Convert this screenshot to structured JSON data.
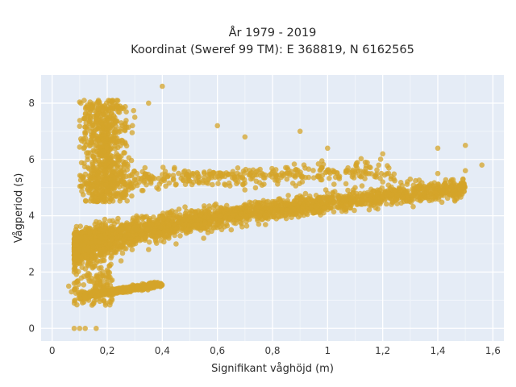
{
  "chart_data": {
    "type": "scatter",
    "title": [
      "År 1979 - 2019",
      "Koordinat (Sweref 99 TM): E 368819, N 6162565"
    ],
    "xlabel": "Signifikant våghöjd (m)",
    "ylabel": "Vågperiod (s)",
    "xlim": [
      -0.04,
      1.64
    ],
    "ylim": [
      -0.45,
      9.0
    ],
    "x_ticks": [
      0,
      0.2,
      0.4,
      0.6,
      0.8,
      1.0,
      1.2,
      1.4,
      1.6
    ],
    "x_tick_labels": [
      "0",
      "0,2",
      "0,4",
      "0,6",
      "0,8",
      "1",
      "1,2",
      "1,4",
      "1,6"
    ],
    "y_ticks": [
      0,
      2,
      4,
      6,
      8
    ],
    "y_tick_labels": [
      "0",
      "2",
      "4",
      "6",
      "8"
    ],
    "grid": true,
    "plot_bgcolor": "#e5ecf6",
    "marker_color": "#d4a42a",
    "marker_opacity": 0.75,
    "series": [
      {
        "points": [
          [
            0.06,
            1.5
          ],
          [
            0.07,
            1.3
          ],
          [
            0.08,
            1.6
          ],
          [
            0.1,
            1.2
          ],
          [
            0.12,
            1.1
          ],
          [
            0.14,
            1.15
          ],
          [
            0.18,
            1.2
          ],
          [
            0.22,
            1.3
          ],
          [
            0.28,
            1.45
          ],
          [
            0.38,
            1.6
          ],
          [
            0.08,
            2.0
          ],
          [
            0.1,
            2.3
          ],
          [
            0.12,
            2.6
          ],
          [
            0.15,
            2.9
          ],
          [
            0.18,
            3.2
          ],
          [
            0.22,
            3.5
          ],
          [
            0.3,
            3.8
          ],
          [
            0.4,
            4.0
          ],
          [
            0.5,
            4.1
          ],
          [
            0.6,
            4.3
          ],
          [
            0.7,
            4.4
          ],
          [
            0.8,
            4.5
          ],
          [
            0.9,
            4.6
          ],
          [
            1.0,
            4.8
          ],
          [
            1.1,
            5.0
          ],
          [
            1.2,
            5.2
          ],
          [
            1.3,
            5.3
          ],
          [
            1.4,
            5.5
          ],
          [
            1.5,
            5.6
          ],
          [
            1.56,
            5.8
          ],
          [
            0.25,
            2.4
          ],
          [
            0.35,
            2.8
          ],
          [
            0.45,
            3.0
          ],
          [
            0.55,
            3.2
          ],
          [
            0.65,
            3.5
          ],
          [
            0.75,
            3.7
          ],
          [
            0.85,
            3.9
          ],
          [
            0.95,
            4.1
          ],
          [
            1.05,
            4.3
          ],
          [
            1.15,
            4.4
          ],
          [
            1.25,
            4.6
          ],
          [
            1.35,
            4.8
          ],
          [
            1.45,
            5.0
          ],
          [
            0.08,
            0.0
          ],
          [
            0.1,
            0.0
          ],
          [
            0.12,
            0.0
          ],
          [
            0.16,
            0.0
          ],
          [
            0.3,
            7.5
          ],
          [
            0.35,
            8.0
          ],
          [
            0.4,
            8.6
          ],
          [
            0.12,
            6.9
          ],
          [
            0.2,
            7.2
          ],
          [
            0.25,
            7.8
          ],
          [
            0.6,
            7.2
          ],
          [
            0.7,
            6.8
          ],
          [
            0.9,
            7.0
          ],
          [
            1.0,
            6.4
          ],
          [
            1.2,
            6.2
          ],
          [
            1.4,
            6.4
          ],
          [
            1.5,
            6.5
          ]
        ]
      }
    ]
  }
}
